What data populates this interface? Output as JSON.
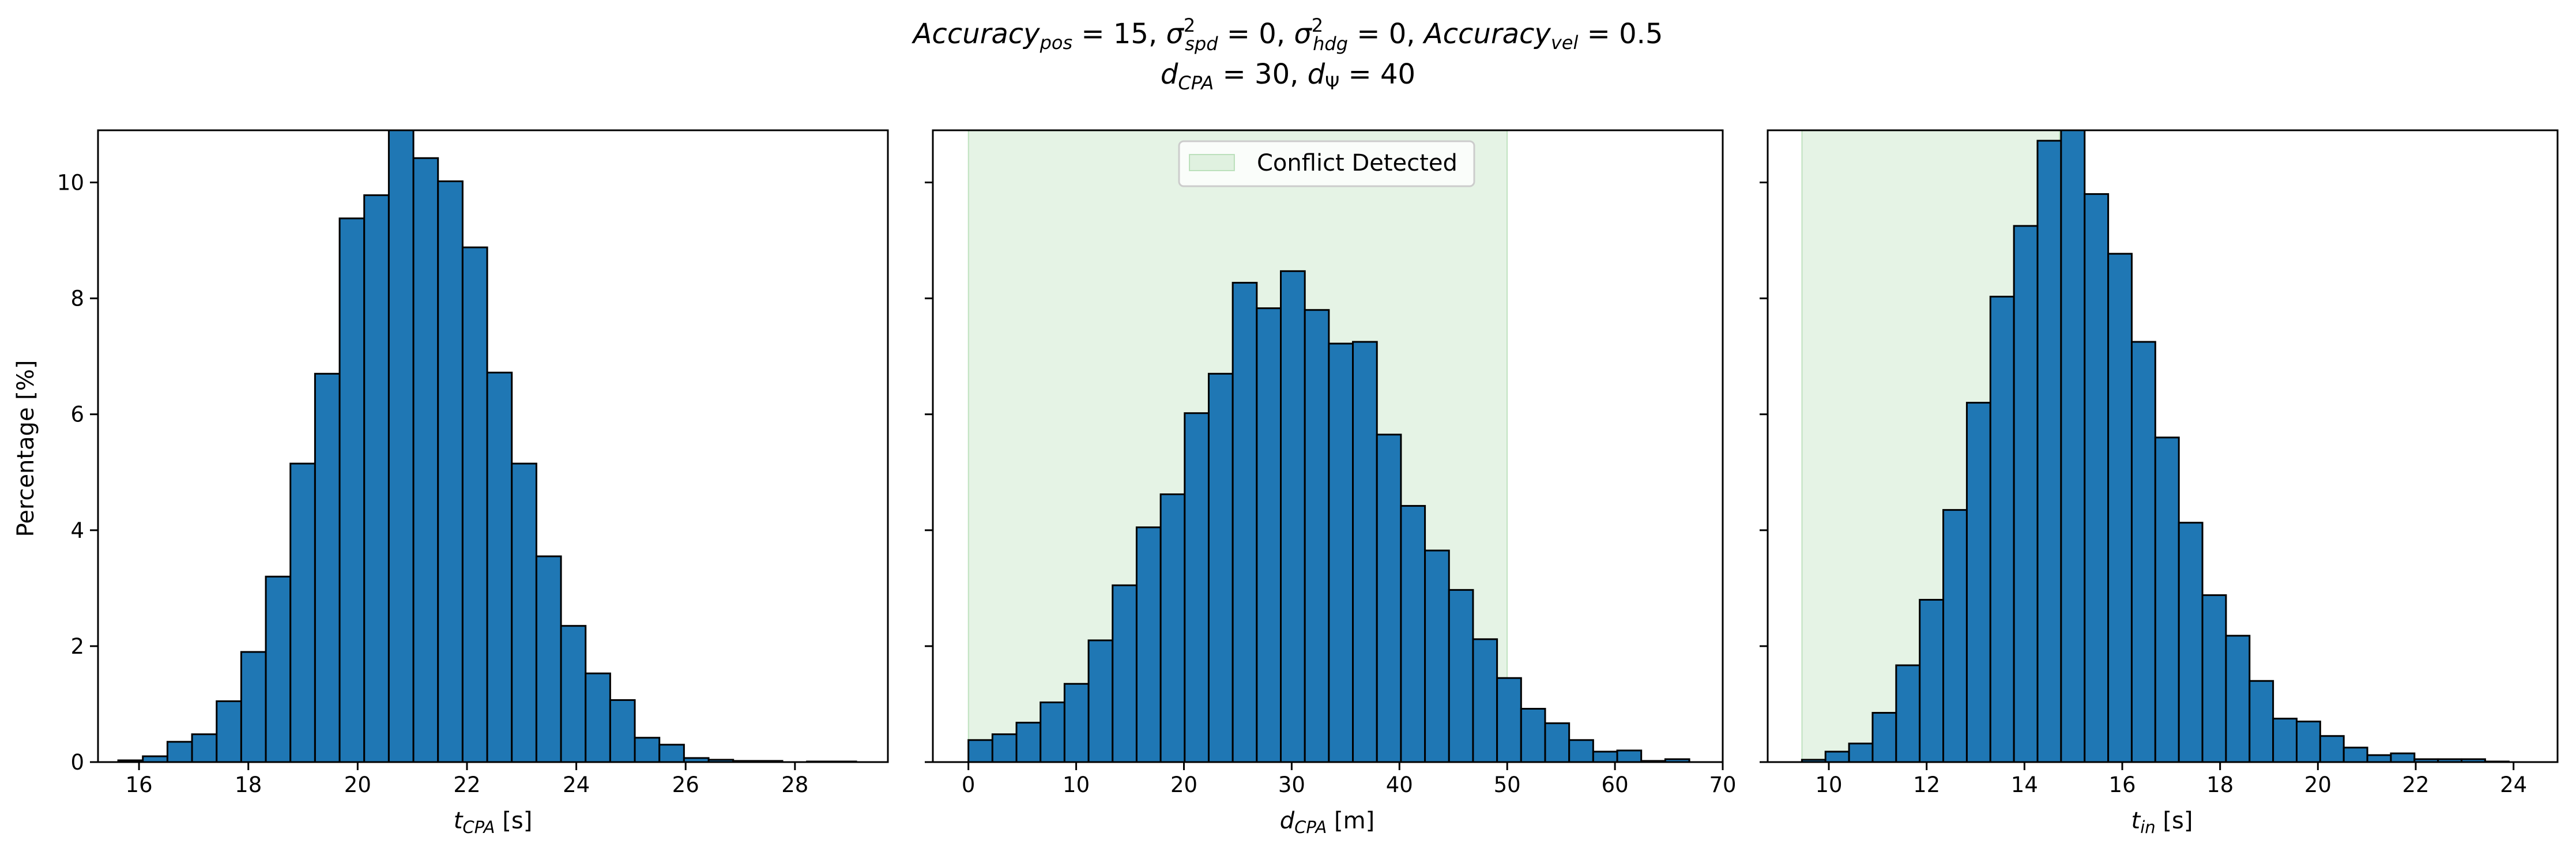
{
  "figure": {
    "title_line1": "Accuracy_pos = 15, σ²_spd = 0, σ²_hdg = 0, Accuracy_vel = 0.5",
    "title_line2": "d_CPA = 30, d_Ψ = 40"
  },
  "colors": {
    "bar_fill": "#1f77b4",
    "bar_edge": "#000000",
    "conflict_shade": "#2ca02c"
  },
  "chart_data": [
    {
      "type": "bar",
      "subtype": "histogram",
      "xlabel": "t_CPA [s]",
      "ylabel": "Percentage [%]",
      "xlim": [
        15.25,
        29.7
      ],
      "ylim": [
        0,
        10.9
      ],
      "xticks": [
        16,
        18,
        20,
        22,
        24,
        26,
        28
      ],
      "yticks": [
        0,
        2,
        4,
        6,
        8,
        10
      ],
      "grid": false,
      "bin_start": 15.62,
      "bin_width": 0.45,
      "values": [
        0.03,
        0.1,
        0.35,
        0.48,
        1.05,
        1.9,
        3.2,
        5.15,
        6.7,
        9.38,
        9.78,
        10.9,
        10.42,
        10.02,
        8.88,
        6.72,
        5.15,
        3.55,
        2.35,
        1.53,
        1.07,
        0.42,
        0.3,
        0.07,
        0.04,
        0.02,
        0.02,
        0.0,
        0.01,
        0.01
      ]
    },
    {
      "type": "bar",
      "subtype": "histogram",
      "xlabel": "d_CPA [m]",
      "ylabel": "",
      "xlim": [
        -3.3,
        70.0
      ],
      "ylim": [
        0,
        10.9
      ],
      "xticks": [
        0,
        10,
        20,
        30,
        40,
        50,
        60,
        70
      ],
      "yticks": [
        0,
        2,
        4,
        6,
        8,
        10
      ],
      "grid": false,
      "bin_start": 0.0,
      "bin_width": 2.23,
      "values": [
        0.38,
        0.48,
        0.68,
        1.03,
        1.35,
        2.1,
        3.05,
        4.05,
        4.62,
        6.02,
        6.7,
        8.27,
        7.83,
        8.47,
        7.8,
        7.22,
        7.25,
        5.65,
        4.42,
        3.65,
        2.97,
        2.12,
        1.45,
        0.92,
        0.67,
        0.38,
        0.18,
        0.2,
        0.02,
        0.05
      ],
      "shaded_region": {
        "x_start": 0,
        "x_end": 50
      },
      "legend": {
        "label": "Conflict Detected",
        "position": "upper center"
      }
    },
    {
      "type": "bar",
      "subtype": "histogram",
      "xlabel": "t_in [s]",
      "ylabel": "",
      "xlim": [
        8.75,
        24.9
      ],
      "ylim": [
        0,
        10.9
      ],
      "xticks": [
        10,
        12,
        14,
        16,
        18,
        20,
        22,
        24
      ],
      "yticks": [
        0,
        2,
        4,
        6,
        8,
        10
      ],
      "grid": false,
      "bin_start": 9.45,
      "bin_width": 0.4817,
      "values": [
        0.04,
        0.18,
        0.32,
        0.85,
        1.67,
        2.8,
        4.35,
        6.2,
        8.03,
        9.25,
        10.72,
        10.9,
        9.8,
        8.77,
        7.25,
        5.6,
        4.13,
        2.88,
        2.18,
        1.4,
        0.75,
        0.7,
        0.45,
        0.25,
        0.12,
        0.15,
        0.05,
        0.05,
        0.05,
        0.01
      ],
      "shaded_region": {
        "x_start": 9.45,
        "x_end": 14.72
      }
    }
  ]
}
